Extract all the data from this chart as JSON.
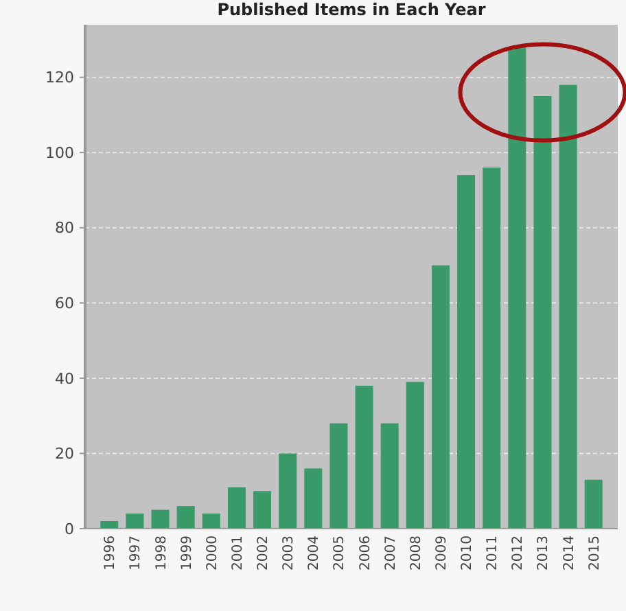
{
  "chart_data": {
    "type": "bar",
    "title": "Published Items in Each Year",
    "categories": [
      "1996",
      "1997",
      "1998",
      "1999",
      "2000",
      "2001",
      "2002",
      "2003",
      "2004",
      "2005",
      "2006",
      "2007",
      "2008",
      "2009",
      "2010",
      "2011",
      "2012",
      "2013",
      "2014",
      "2015"
    ],
    "values": [
      2,
      4,
      5,
      6,
      4,
      11,
      10,
      20,
      16,
      28,
      38,
      28,
      39,
      70,
      94,
      96,
      128,
      115,
      118,
      13
    ],
    "color": "#3a9a6a",
    "ylim": [
      0,
      134
    ],
    "yticks": [
      0,
      20,
      40,
      60,
      80,
      100,
      120
    ],
    "grid": "y"
  }
}
